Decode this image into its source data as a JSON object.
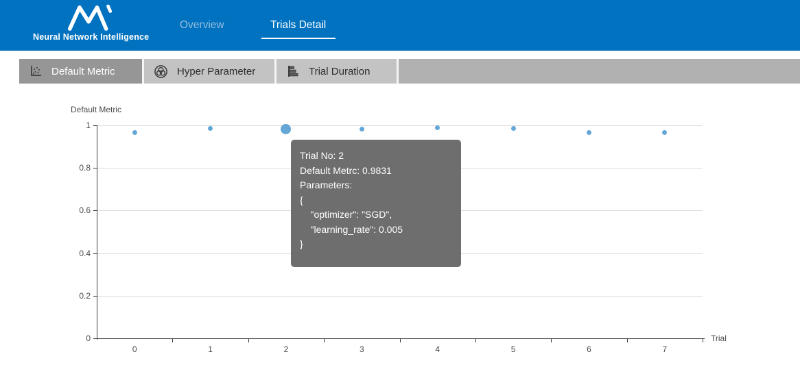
{
  "header": {
    "logo_text": "Neural Network Intelligence",
    "nav_overview": "Overview",
    "nav_trials_detail": "Trials Detail"
  },
  "tabs": [
    {
      "label": "Default Metric",
      "icon": "scatter-plot-icon",
      "active": true
    },
    {
      "label": "Hyper Parameter",
      "icon": "venn-diagram-icon",
      "active": false
    },
    {
      "label": "Trial Duration",
      "icon": "bar-chart-icon",
      "active": false
    }
  ],
  "tooltip": {
    "lines": [
      "Trial No: 2",
      "Default Metrc: 0.9831",
      "Parameters:",
      "{",
      "    \"optimizer\": \"SGD\",",
      "    \"learning_rate\": 0.005",
      "}"
    ]
  },
  "chart_data": {
    "type": "scatter",
    "title": "Default Metric",
    "xlabel": "Trial",
    "ylabel": "Default Metric",
    "x": [
      0,
      1,
      2,
      3,
      4,
      5,
      6,
      7
    ],
    "values": [
      0.965,
      0.987,
      0.9831,
      0.983,
      0.99,
      0.985,
      0.965,
      0.965
    ],
    "highlighted_index": 2,
    "highlighted_value": 0.9831,
    "ylim": [
      0,
      1
    ],
    "yticks": [
      0,
      0.2,
      0.4,
      0.6,
      0.8,
      1
    ],
    "grid": true,
    "legend_position": "none",
    "point_color": "#64a7d7"
  },
  "colors": {
    "header_blue": "#0072bf",
    "active_subtab_gray": "#969696",
    "inactive_subtab_gray": "#c3c3c3",
    "subtab_bar_gray": "#b1b1b1",
    "point_blue": "#64a7d7",
    "tooltip_background": "rgba(99,99,99,0.93)"
  }
}
